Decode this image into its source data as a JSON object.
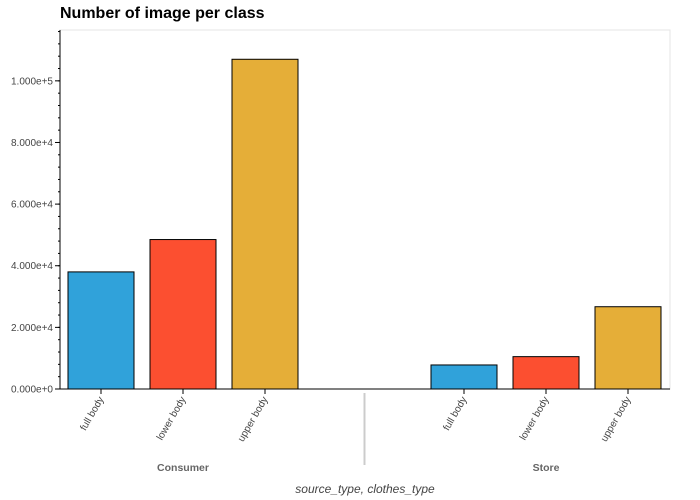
{
  "chart_data": {
    "type": "bar",
    "title": "Number of image per class",
    "xlabel": "source_type, clothes_type",
    "ylabel": "",
    "groups": [
      {
        "name": "Consumer",
        "categories": [
          "full body",
          "lower body",
          "upper body"
        ],
        "values": [
          38000,
          48500,
          107000
        ]
      },
      {
        "name": "Store",
        "categories": [
          "full body",
          "lower body",
          "upper body"
        ],
        "values": [
          7800,
          10500,
          26700
        ]
      }
    ],
    "ylim": [
      0,
      116500
    ],
    "yticks": [
      0,
      20000,
      40000,
      60000,
      80000,
      100000
    ],
    "ytick_labels": [
      "0.000e+0",
      "2.000e+4",
      "4.000e+4",
      "6.000e+4",
      "8.000e+4",
      "1.000e+5"
    ],
    "colors": [
      "#30a2da",
      "#fc4f30",
      "#e5ae38"
    ],
    "grid": false,
    "legend": "none"
  }
}
